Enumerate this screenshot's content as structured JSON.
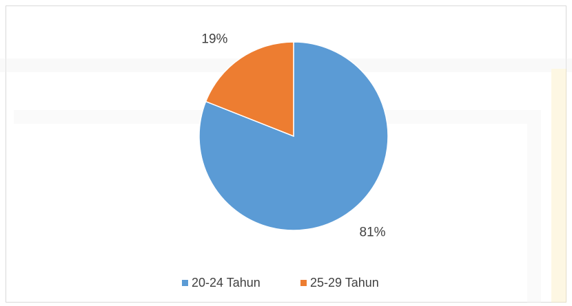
{
  "chart_data": {
    "type": "pie",
    "categories": [
      "20-24 Tahun",
      "25-29 Tahun"
    ],
    "values": [
      81,
      19
    ],
    "value_labels": [
      "81%",
      "19%"
    ],
    "colors": [
      "#5b9bd5",
      "#ed7d31"
    ],
    "legend": "bottom"
  }
}
